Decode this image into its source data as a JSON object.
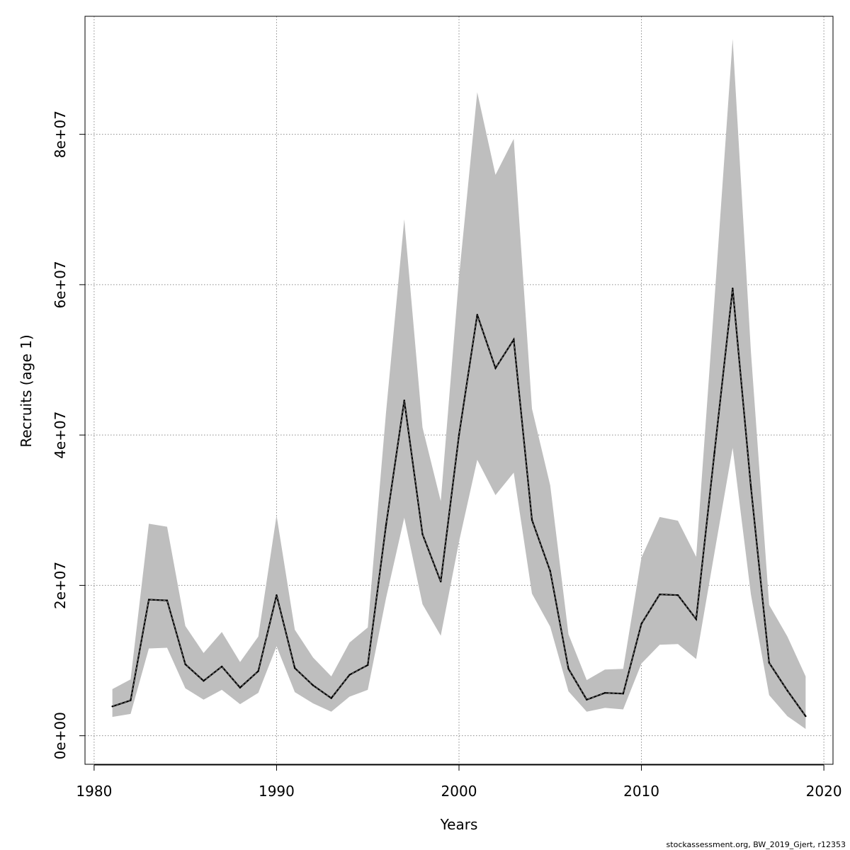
{
  "chart_data": {
    "type": "area",
    "xlabel": "Years",
    "ylabel": "Recruits (age 1)",
    "xlim": [
      1979.5,
      2020.5
    ],
    "ylim": [
      -3800000,
      95700000
    ],
    "x_ticks": [
      1980,
      1990,
      2000,
      2010,
      2020
    ],
    "x_tick_labels": [
      "1980",
      "1990",
      "2000",
      "2010",
      "2020"
    ],
    "y_ticks": [
      0,
      20000000,
      40000000,
      60000000,
      80000000
    ],
    "y_tick_labels": [
      "0e+00",
      "2e+07",
      "4e+07",
      "6e+07",
      "8e+07"
    ],
    "grid": true,
    "band_color": "#bebebe",
    "line_color": "#000000",
    "x": [
      1981,
      1982,
      1983,
      1984,
      1985,
      1986,
      1987,
      1988,
      1989,
      1990,
      1991,
      1992,
      1993,
      1994,
      1995,
      1996,
      1997,
      1998,
      1999,
      2000,
      2001,
      2002,
      2003,
      2004,
      2005,
      2006,
      2007,
      2008,
      2009,
      2010,
      2011,
      2012,
      2013,
      2014,
      2015,
      2016,
      2017,
      2018,
      2019
    ],
    "series": [
      {
        "role": "estimate",
        "values": [
          3900000,
          4700000,
          18100000,
          18000000,
          9500000,
          7300000,
          9200000,
          6400000,
          8600000,
          18700000,
          9000000,
          6700000,
          5000000,
          8100000,
          9400000,
          28000000,
          44600000,
          26800000,
          20500000,
          40000000,
          56000000,
          48900000,
          52700000,
          28700000,
          21900000,
          8900000,
          4800000,
          5700000,
          5600000,
          14900000,
          18800000,
          18700000,
          15500000,
          37600000,
          59500000,
          33100000,
          9700000,
          6000000,
          2600000
        ]
      },
      {
        "role": "upper",
        "values": [
          6200000,
          7500000,
          28200000,
          27800000,
          14600000,
          11000000,
          13800000,
          9800000,
          13200000,
          29300000,
          14100000,
          10400000,
          7900000,
          12400000,
          14400000,
          43000000,
          68700000,
          41000000,
          31200000,
          61000000,
          85600000,
          74600000,
          79400000,
          43500000,
          33300000,
          13500000,
          7400000,
          8800000,
          8900000,
          23700000,
          29100000,
          28600000,
          23800000,
          57900000,
          92700000,
          51100000,
          17400000,
          13200000,
          7900000
        ]
      },
      {
        "role": "lower",
        "values": [
          2500000,
          2900000,
          11600000,
          11700000,
          6300000,
          4800000,
          6100000,
          4200000,
          5700000,
          11900000,
          5800000,
          4300000,
          3200000,
          5200000,
          6100000,
          18300000,
          29000000,
          17500000,
          13300000,
          25800000,
          36700000,
          32000000,
          35000000,
          18900000,
          14500000,
          5900000,
          3200000,
          3700000,
          3500000,
          9600000,
          12100000,
          12200000,
          10200000,
          24300000,
          38300000,
          18800000,
          5400000,
          2600000,
          900000
        ]
      }
    ]
  },
  "footer": {
    "credit": "stockassessment.org, BW_2019_Gjert, r12353"
  }
}
